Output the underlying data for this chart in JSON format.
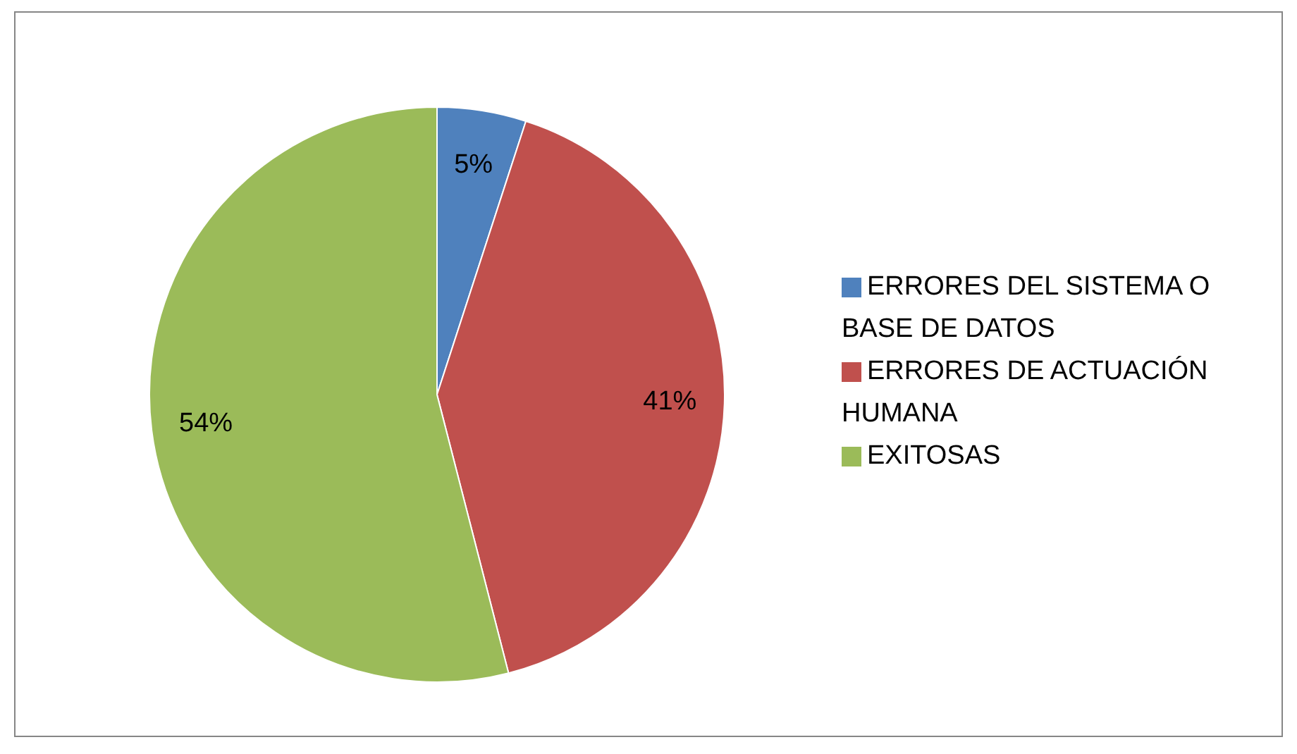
{
  "chart_data": {
    "type": "pie",
    "categories": [
      "ERRORES DEL SISTEMA O BASE DE DATOS",
      "ERRORES DE ACTUACIÓN HUMANA",
      "EXITOSAS"
    ],
    "values": [
      5,
      41,
      54
    ],
    "colors": [
      "#4f81bd",
      "#c0504d",
      "#9bbb59"
    ],
    "value_labels": [
      "5%",
      "41%",
      "54%"
    ],
    "legend": "right"
  }
}
